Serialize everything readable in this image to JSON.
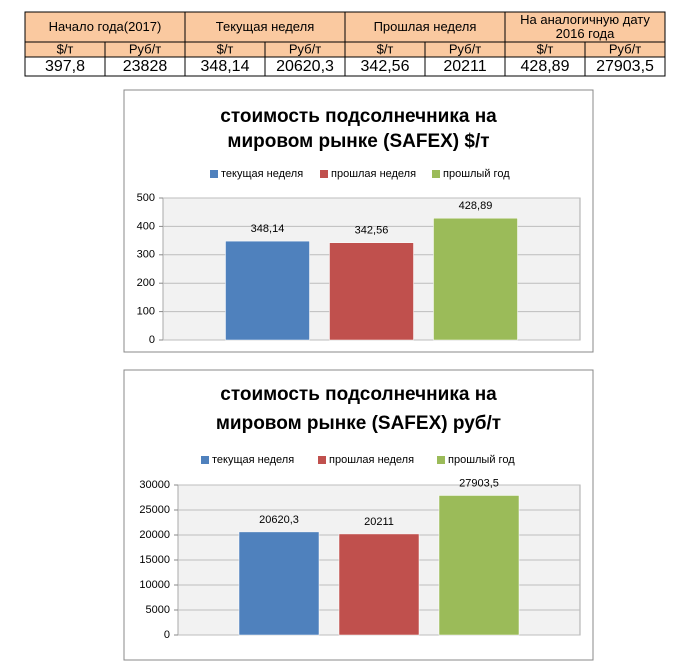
{
  "table": {
    "header": [
      "Начало года(2017)",
      "Текущая неделя",
      "Прошлая неделя",
      "На аналогичную дату 2016 года"
    ],
    "units": [
      "$/т",
      "Руб/т",
      "$/т",
      "Руб/т",
      "$/т",
      "Руб/т",
      "$/т",
      "Руб/т"
    ],
    "rows": [
      [
        "397,8",
        "23828",
        "348,14",
        "20620,3",
        "342,56",
        "20211",
        "428,89",
        "27903,5"
      ]
    ]
  },
  "chart_data": [
    {
      "type": "bar",
      "title": "стоимость подсолнечника на мировом рынке (SAFEX) $/т",
      "categories": [
        null
      ],
      "series": [
        {
          "name": "текущая неделя",
          "color": "#4f81bd",
          "values": [
            348.14
          ],
          "value_labels": [
            "348,14"
          ]
        },
        {
          "name": "прошлая неделя",
          "color": "#c0504d",
          "values": [
            342.56
          ],
          "value_labels": [
            "342,56"
          ]
        },
        {
          "name": "прошлый год",
          "color": "#9bbb59",
          "values": [
            428.89
          ],
          "value_labels": [
            "428,89"
          ]
        }
      ],
      "ylim": [
        0,
        500
      ],
      "yticks": [
        0,
        100,
        200,
        300,
        400,
        500
      ],
      "grid": true,
      "legend": "top"
    },
    {
      "type": "bar",
      "title": "стоимость подсолнечника на мировом рынке (SAFEX) руб/т",
      "categories": [
        null
      ],
      "series": [
        {
          "name": "текущая неделя",
          "color": "#4f81bd",
          "values": [
            20620.3
          ],
          "value_labels": [
            "20620,3"
          ]
        },
        {
          "name": "прошлая неделя",
          "color": "#c0504d",
          "values": [
            20211
          ]
        },
        {
          "name": "прошлый год",
          "color": "#9bbb59",
          "values": [
            27903.5
          ],
          "value_labels": [
            "27903,5"
          ]
        }
      ],
      "ylim": [
        0,
        30000
      ],
      "yticks": [
        0,
        5000,
        10000,
        15000,
        20000,
        25000,
        30000
      ],
      "grid": true,
      "legend": "top"
    }
  ]
}
